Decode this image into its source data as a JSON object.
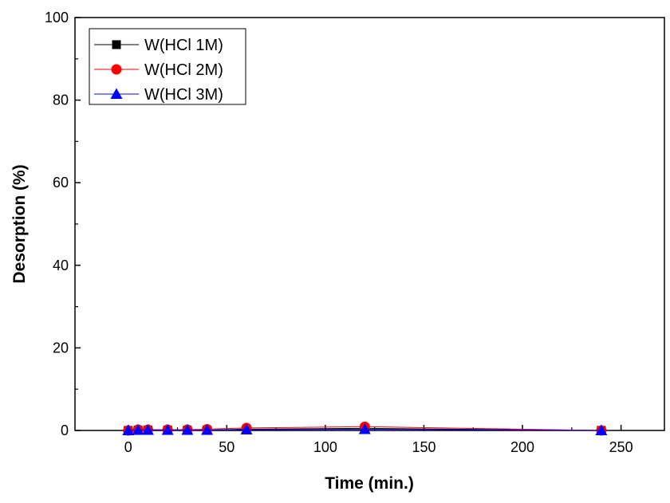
{
  "chart_data": {
    "type": "line",
    "title": "",
    "xlabel": "Time (min.)",
    "ylabel": "Desorption (%)",
    "xlim": [
      -27,
      272
    ],
    "ylim": [
      0,
      100
    ],
    "x_ticks": [
      0,
      50,
      100,
      150,
      200,
      250
    ],
    "y_ticks": [
      0,
      20,
      40,
      60,
      80,
      100
    ],
    "legend_position": "top-left",
    "grid": false,
    "x": [
      0,
      5,
      10,
      20,
      30,
      40,
      60,
      120,
      240
    ],
    "series": [
      {
        "name": "W(HCl 1M)",
        "color": "#000000",
        "marker": "square",
        "values": [
          0,
          0.1,
          0.1,
          0.1,
          0.1,
          0.1,
          0.3,
          0.5,
          0
        ]
      },
      {
        "name": "W(HCl 2M)",
        "color": "#ff0000",
        "marker": "circle",
        "values": [
          0,
          0.2,
          0.2,
          0.2,
          0.2,
          0.3,
          0.6,
          0.9,
          0
        ]
      },
      {
        "name": "W(HCl 3M)",
        "color": "#0000ff",
        "marker": "triangle",
        "values": [
          0,
          0.1,
          0.1,
          0.1,
          0.1,
          0.1,
          0.2,
          0.3,
          0
        ]
      }
    ]
  }
}
